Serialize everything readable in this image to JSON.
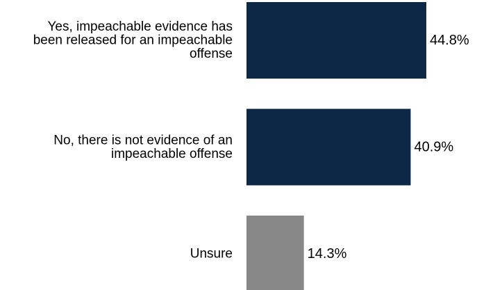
{
  "chart_data": {
    "type": "bar",
    "orientation": "horizontal",
    "categories": [
      [
        "Yes, impeachable evidence has",
        "been released for an impeachable",
        "offense"
      ],
      [
        "No, there is not evidence of an",
        "impeachable offense"
      ],
      [
        "Unsure"
      ]
    ],
    "values": [
      44.8,
      40.9,
      14.3
    ],
    "value_labels": [
      "44.8%",
      "40.9%",
      "14.3%"
    ],
    "colors": [
      "#0d2846",
      "#0d2846",
      "#878787"
    ],
    "title": "",
    "xlabel": "",
    "ylabel": "",
    "xlim": [
      0,
      56.5
    ],
    "grid": false,
    "legend": "none"
  }
}
